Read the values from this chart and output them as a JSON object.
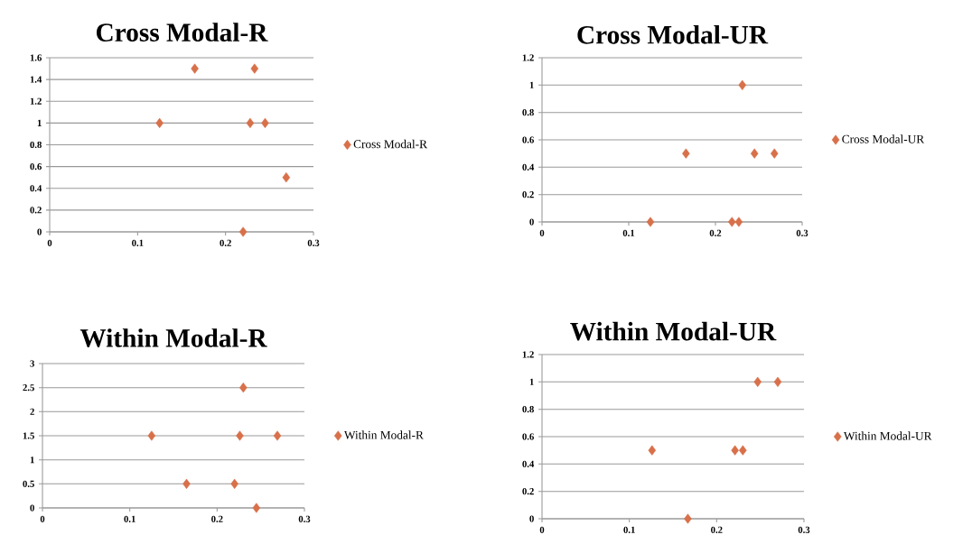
{
  "chart_data": [
    {
      "type": "scatter",
      "title": "Cross Modal-R",
      "x": [
        0.125,
        0.165,
        0.22,
        0.228,
        0.233,
        0.245,
        0.269
      ],
      "series": [
        {
          "name": "Cross Modal-R",
          "color": "#d8704a",
          "values": [
            1,
            1.5,
            0,
            1,
            1.5,
            1,
            0.5
          ]
        }
      ],
      "xlim": [
        0,
        0.3
      ],
      "ylim": [
        0,
        1.6
      ],
      "xticks": [
        0,
        0.1,
        0.2,
        0.3
      ],
      "yticks": [
        0,
        0.2,
        0.4,
        0.6,
        0.8,
        1,
        1.2,
        1.4,
        1.6
      ],
      "grid": "y",
      "legend": "right",
      "marker": "diamond"
    },
    {
      "type": "scatter",
      "title": "Cross Modal-UR",
      "x": [
        0.125,
        0.166,
        0.219,
        0.227,
        0.231,
        0.245,
        0.268
      ],
      "series": [
        {
          "name": "Cross Modal-UR",
          "color": "#d8704a",
          "values": [
            0,
            0.5,
            0,
            0,
            1,
            0.5,
            0.5
          ]
        }
      ],
      "xlim": [
        0,
        0.3
      ],
      "ylim": [
        0,
        1.2
      ],
      "xticks": [
        0,
        0.1,
        0.2,
        0.3
      ],
      "yticks": [
        0,
        0.2,
        0.4,
        0.6,
        0.8,
        1,
        1.2
      ],
      "grid": "y",
      "legend": "right",
      "marker": "diamond"
    },
    {
      "type": "scatter",
      "title": "Within Modal-R",
      "x": [
        0.125,
        0.165,
        0.22,
        0.226,
        0.23,
        0.245,
        0.269
      ],
      "series": [
        {
          "name": "Within Modal-R",
          "color": "#d8704a",
          "values": [
            1.5,
            0.5,
            0.5,
            1.5,
            2.5,
            0,
            1.5
          ]
        }
      ],
      "xlim": [
        0,
        0.3
      ],
      "ylim": [
        0,
        3
      ],
      "xticks": [
        0,
        0.1,
        0.2,
        0.3
      ],
      "yticks": [
        0,
        0.5,
        1,
        1.5,
        2,
        2.5,
        3
      ],
      "grid": "y",
      "legend": "right",
      "marker": "diamond"
    },
    {
      "type": "scatter",
      "title": "Within Modal-UR",
      "x": [
        0.126,
        0.167,
        0.221,
        0.23,
        0.247,
        0.27
      ],
      "series": [
        {
          "name": "Within Modal-UR",
          "color": "#d8704a",
          "values": [
            0.5,
            0,
            0.5,
            0.5,
            1,
            1
          ]
        }
      ],
      "xlim": [
        0,
        0.3
      ],
      "ylim": [
        0,
        1.2
      ],
      "xticks": [
        0,
        0.1,
        0.2,
        0.3
      ],
      "yticks": [
        0,
        0.2,
        0.4,
        0.6,
        0.8,
        1,
        1.2
      ],
      "grid": "y",
      "legend": "right",
      "marker": "diamond"
    }
  ]
}
